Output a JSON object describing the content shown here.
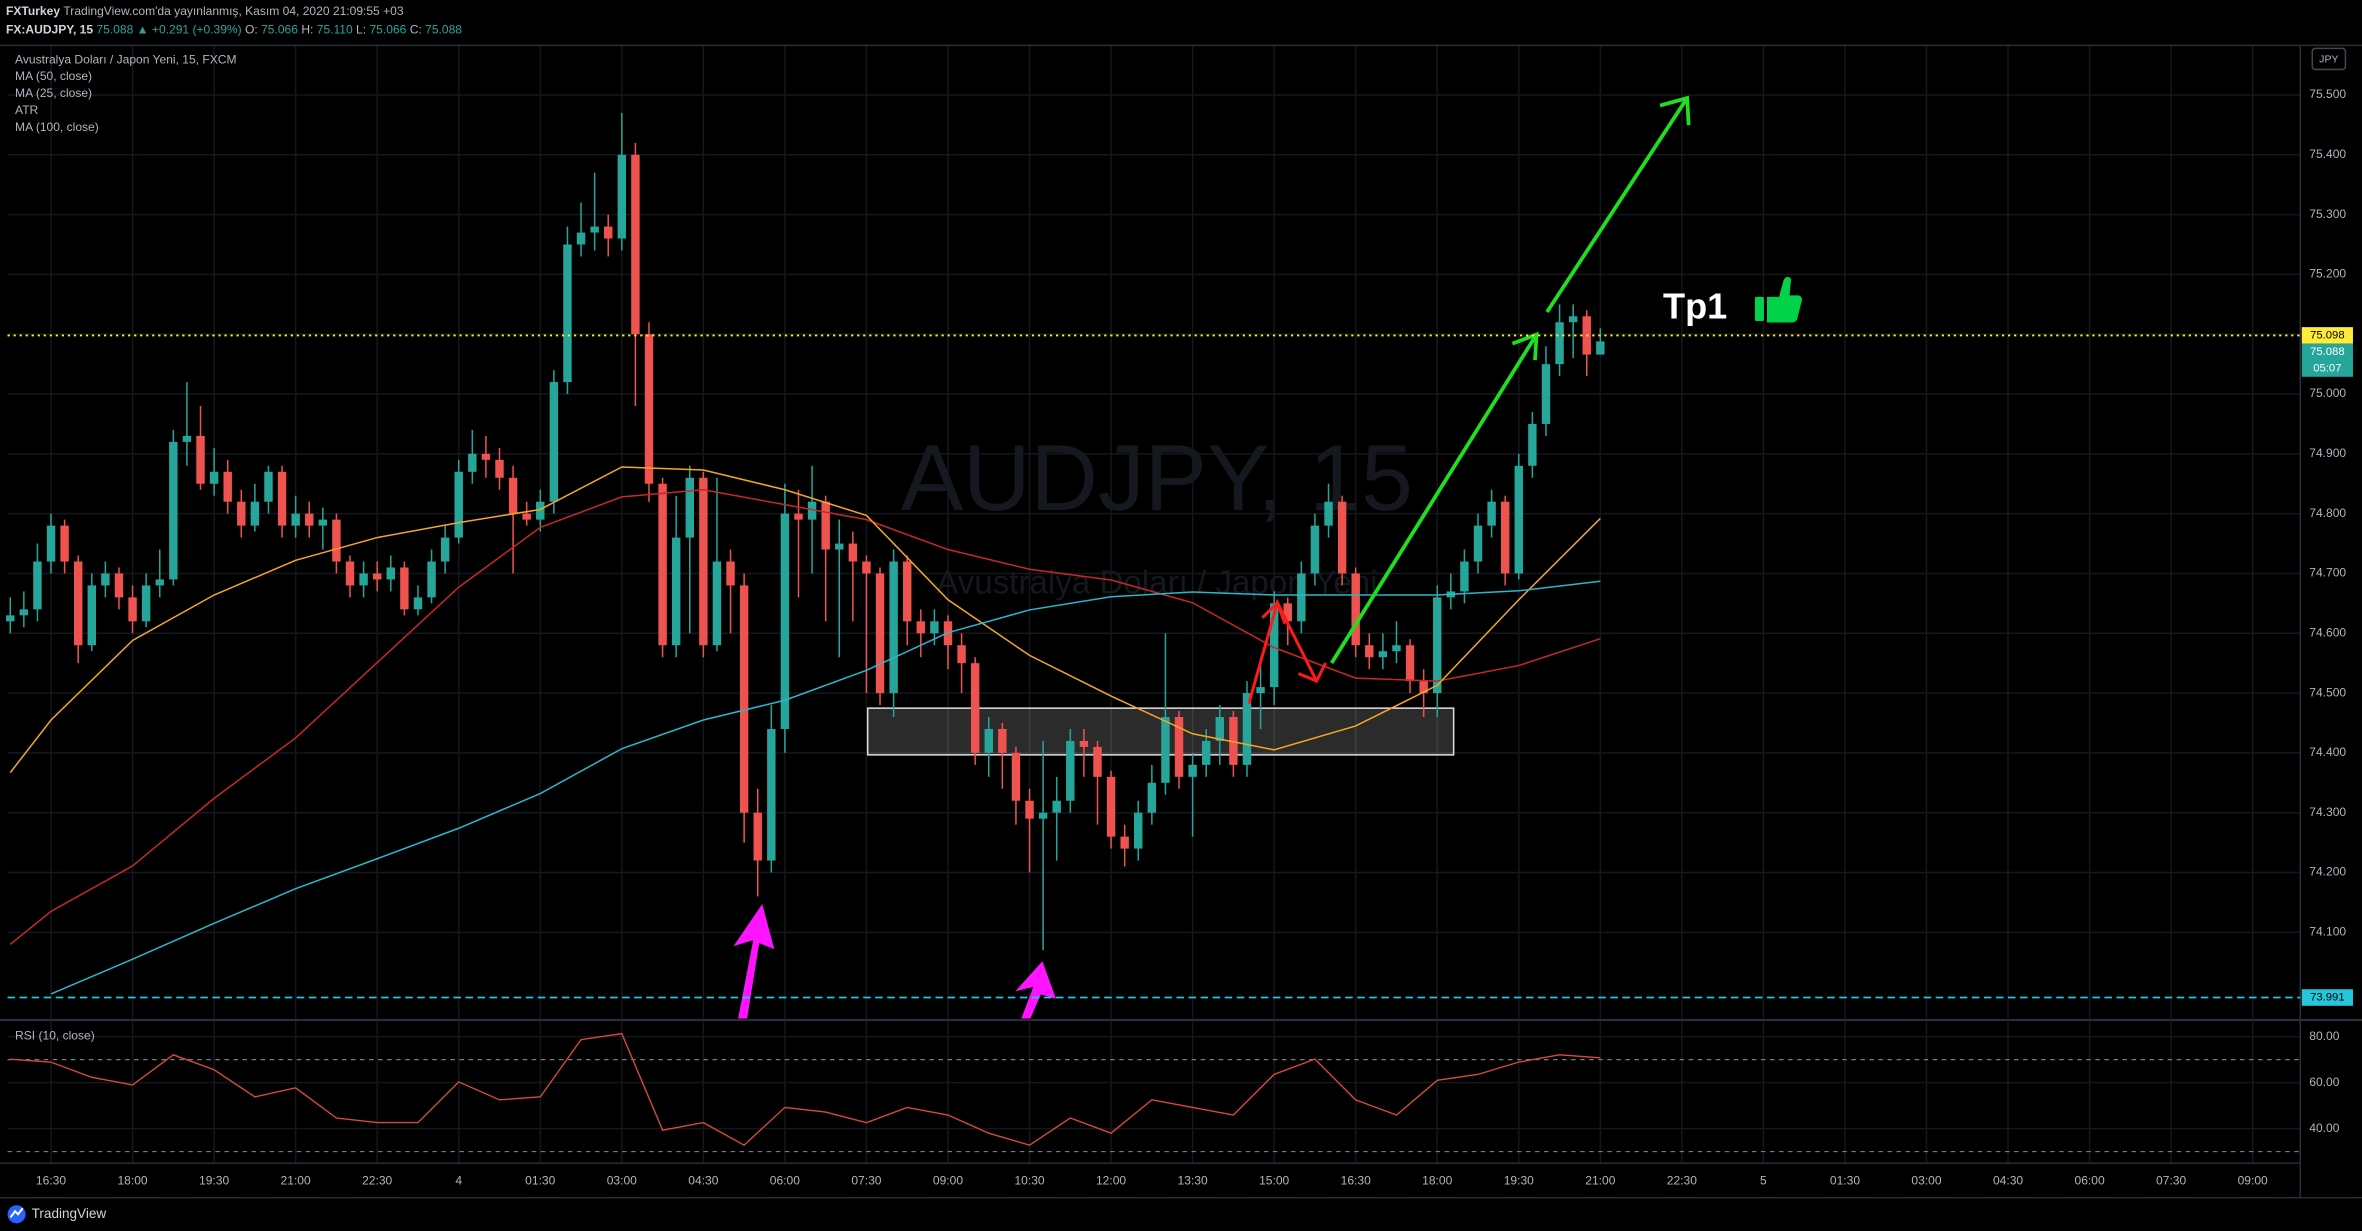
{
  "header": {
    "author": "FXTurkey",
    "published": "TradingView.com'da yayınlanmış, Kasım 04, 2020 21:09:55 +03",
    "quote": [
      "FX:AUDJPY, 15",
      "75.088",
      "▲ +0.291 (+0.39%)",
      "O:",
      "75.066",
      "H:",
      "75.110",
      "L:",
      "75.066",
      "C:",
      "75.088"
    ]
  },
  "footer": {
    "brand": "TradingView"
  },
  "chart_data": [
    {
      "type": "candlestick",
      "title": "Avustralya Doları / Japon Yeni, 15, FXCM",
      "watermark": "AUDJPY, 15",
      "watermark_sub": "Avustralya Doları / Japon Yeni",
      "currency": "JPY",
      "annotation": "Tp1",
      "up_color": "#26a69a",
      "down_color": "#ef5350",
      "xlim": [
        -3.2,
        165.5
      ],
      "ylim": [
        73.956,
        75.583
      ],
      "grid": true,
      "xticks": [
        {
          "value": 0,
          "label": "16:30"
        },
        {
          "value": 6,
          "label": "18:00"
        },
        {
          "value": 12,
          "label": "19:30"
        },
        {
          "value": 18,
          "label": "21:00"
        },
        {
          "value": 24,
          "label": "22:30"
        },
        {
          "value": 30,
          "label": "4"
        },
        {
          "value": 36,
          "label": "01:30"
        },
        {
          "value": 42,
          "label": "03:00"
        },
        {
          "value": 48,
          "label": "04:30"
        },
        {
          "value": 54,
          "label": "06:00"
        },
        {
          "value": 60,
          "label": "07:30"
        },
        {
          "value": 66,
          "label": "09:00"
        },
        {
          "value": 72,
          "label": "10:30"
        },
        {
          "value": 78,
          "label": "12:00"
        },
        {
          "value": 84,
          "label": "13:30"
        },
        {
          "value": 90,
          "label": "15:00"
        },
        {
          "value": 96,
          "label": "16:30"
        },
        {
          "value": 102,
          "label": "18:00"
        },
        {
          "value": 108,
          "label": "19:30"
        },
        {
          "value": 114,
          "label": "21:00"
        },
        {
          "value": 120,
          "label": "22:30"
        },
        {
          "value": 126,
          "label": "5"
        },
        {
          "value": 132,
          "label": "01:30"
        },
        {
          "value": 138,
          "label": "03:00"
        },
        {
          "value": 144,
          "label": "04:30"
        },
        {
          "value": 150,
          "label": "06:00"
        },
        {
          "value": 156,
          "label": "07:30"
        },
        {
          "value": 162,
          "label": "09:00"
        }
      ],
      "yticks": [
        {
          "value": 74.1,
          "label": "74.100"
        },
        {
          "value": 74.2,
          "label": "74.200"
        },
        {
          "value": 74.3,
          "label": "74.300"
        },
        {
          "value": 74.4,
          "label": "74.400"
        },
        {
          "value": 74.5,
          "label": "74.500"
        },
        {
          "value": 74.6,
          "label": "74.600"
        },
        {
          "value": 74.7,
          "label": "74.700"
        },
        {
          "value": 74.8,
          "label": "74.800"
        },
        {
          "value": 74.9,
          "label": "74.900"
        },
        {
          "value": 75.0,
          "label": "75.000"
        },
        {
          "value": 75.1,
          "label": "75.100"
        },
        {
          "value": 75.2,
          "label": "75.200"
        },
        {
          "value": 75.3,
          "label": "75.300"
        },
        {
          "value": 75.4,
          "label": "75.400"
        },
        {
          "value": 75.5,
          "label": "75.500"
        }
      ],
      "x": [
        -3,
        -2,
        -1,
        0,
        1,
        2,
        3,
        4,
        5,
        6,
        7,
        8,
        9,
        10,
        11,
        12,
        13,
        14,
        15,
        16,
        17,
        18,
        19,
        20,
        21,
        22,
        23,
        24,
        25,
        26,
        27,
        28,
        29,
        30,
        31,
        32,
        33,
        34,
        35,
        36,
        37,
        38,
        39,
        40,
        41,
        42,
        43,
        44,
        45,
        46,
        47,
        48,
        49,
        50,
        51,
        52,
        53,
        54,
        55,
        56,
        57,
        58,
        59,
        60,
        61,
        62,
        63,
        64,
        65,
        66,
        67,
        68,
        69,
        70,
        71,
        72,
        73,
        74,
        75,
        76,
        77,
        78,
        79,
        80,
        81,
        82,
        83,
        84,
        85,
        86,
        87,
        88,
        89,
        90,
        91,
        92,
        93,
        94,
        95,
        96,
        97,
        98,
        99,
        100,
        101,
        102,
        103,
        104,
        105,
        106,
        107,
        108,
        109,
        110,
        111,
        112,
        113,
        114
      ],
      "open": [
        74.62,
        74.63,
        74.64,
        74.72,
        74.78,
        74.72,
        74.58,
        74.68,
        74.7,
        74.66,
        74.62,
        74.68,
        74.69,
        74.92,
        74.93,
        74.85,
        74.87,
        74.82,
        74.78,
        74.82,
        74.87,
        74.78,
        74.8,
        74.78,
        74.79,
        74.72,
        74.68,
        74.7,
        74.69,
        74.71,
        74.64,
        74.66,
        74.72,
        74.76,
        74.87,
        74.9,
        74.89,
        74.86,
        74.8,
        74.79,
        74.82,
        75.02,
        75.25,
        75.27,
        75.28,
        75.26,
        75.4,
        75.1,
        74.85,
        74.58,
        74.76,
        74.86,
        74.58,
        74.72,
        74.68,
        74.3,
        74.22,
        74.44,
        74.8,
        74.79,
        74.82,
        74.74,
        74.75,
        74.72,
        74.7,
        74.5,
        74.72,
        74.62,
        74.6,
        74.62,
        74.58,
        74.55,
        74.4,
        74.44,
        74.4,
        74.32,
        74.29,
        74.3,
        74.32,
        74.42,
        74.41,
        74.36,
        74.26,
        74.24,
        74.3,
        74.35,
        74.46,
        74.36,
        74.38,
        74.42,
        74.46,
        74.38,
        74.5,
        74.51,
        74.65,
        74.62,
        74.7,
        74.78,
        74.82,
        74.7,
        74.58,
        74.56,
        74.57,
        74.58,
        74.52,
        74.5,
        74.66,
        74.67,
        74.72,
        74.78,
        74.82,
        74.7,
        74.88,
        74.95,
        75.05,
        75.12,
        75.13,
        75.066
      ],
      "high": [
        74.66,
        74.67,
        74.75,
        74.8,
        74.79,
        74.73,
        74.7,
        74.72,
        74.71,
        74.68,
        74.7,
        74.74,
        74.94,
        75.02,
        74.98,
        74.91,
        74.89,
        74.84,
        74.85,
        74.88,
        74.88,
        74.83,
        74.82,
        74.81,
        74.8,
        74.73,
        74.72,
        74.72,
        74.73,
        74.72,
        74.68,
        74.74,
        74.78,
        74.89,
        74.94,
        74.93,
        74.91,
        74.88,
        74.82,
        74.84,
        75.04,
        75.28,
        75.32,
        75.37,
        75.3,
        75.47,
        75.42,
        75.12,
        74.86,
        74.83,
        74.88,
        74.87,
        74.86,
        74.74,
        74.7,
        74.34,
        74.48,
        74.85,
        74.84,
        74.88,
        74.83,
        74.79,
        74.77,
        74.73,
        74.71,
        74.74,
        74.73,
        74.64,
        74.64,
        74.63,
        74.6,
        74.56,
        74.46,
        74.45,
        74.41,
        74.34,
        74.42,
        74.36,
        74.44,
        74.44,
        74.42,
        74.37,
        74.28,
        74.32,
        74.38,
        74.6,
        74.47,
        74.4,
        74.44,
        74.48,
        74.47,
        74.52,
        74.56,
        74.67,
        74.66,
        74.72,
        74.8,
        74.85,
        74.83,
        74.71,
        74.6,
        74.6,
        74.62,
        74.59,
        74.54,
        74.68,
        74.7,
        74.74,
        74.8,
        74.84,
        74.83,
        74.9,
        74.97,
        75.08,
        75.15,
        75.15,
        75.14,
        75.11
      ],
      "low": [
        74.6,
        74.61,
        74.62,
        74.7,
        74.7,
        74.55,
        74.57,
        74.66,
        74.64,
        74.6,
        74.61,
        74.66,
        74.68,
        74.88,
        74.84,
        74.83,
        74.8,
        74.76,
        74.77,
        74.8,
        74.76,
        74.76,
        74.76,
        74.74,
        74.7,
        74.66,
        74.66,
        74.67,
        74.67,
        74.63,
        74.63,
        74.65,
        74.7,
        74.75,
        74.85,
        74.86,
        74.84,
        74.7,
        74.78,
        74.77,
        74.8,
        75.0,
        75.23,
        75.24,
        75.23,
        75.24,
        74.98,
        74.82,
        74.56,
        74.56,
        74.6,
        74.56,
        74.57,
        74.6,
        74.25,
        74.16,
        74.2,
        74.4,
        74.66,
        74.7,
        74.62,
        74.56,
        74.62,
        74.5,
        74.48,
        74.46,
        74.58,
        74.56,
        74.58,
        74.54,
        74.5,
        74.38,
        74.36,
        74.34,
        74.28,
        74.2,
        74.07,
        74.22,
        74.3,
        74.36,
        74.28,
        74.24,
        74.21,
        74.22,
        74.28,
        74.33,
        74.34,
        74.26,
        74.36,
        74.38,
        74.36,
        74.36,
        74.44,
        74.48,
        74.58,
        74.6,
        74.68,
        74.76,
        74.68,
        74.56,
        74.54,
        74.54,
        74.55,
        74.5,
        74.46,
        74.46,
        74.64,
        74.65,
        74.7,
        74.76,
        74.68,
        74.69,
        74.86,
        74.93,
        75.03,
        75.06,
        75.03,
        75.066
      ],
      "close": [
        74.63,
        74.64,
        74.72,
        74.78,
        74.72,
        74.58,
        74.68,
        74.7,
        74.66,
        74.62,
        74.68,
        74.69,
        74.92,
        74.93,
        74.85,
        74.87,
        74.82,
        74.78,
        74.82,
        74.87,
        74.78,
        74.8,
        74.78,
        74.79,
        74.72,
        74.68,
        74.7,
        74.69,
        74.71,
        74.64,
        74.66,
        74.72,
        74.76,
        74.87,
        74.9,
        74.89,
        74.86,
        74.8,
        74.79,
        74.82,
        75.02,
        75.25,
        75.27,
        75.28,
        75.26,
        75.4,
        75.1,
        74.85,
        74.58,
        74.76,
        74.86,
        74.58,
        74.72,
        74.68,
        74.3,
        74.22,
        74.44,
        74.8,
        74.79,
        74.82,
        74.74,
        74.75,
        74.72,
        74.7,
        74.5,
        74.72,
        74.62,
        74.6,
        74.62,
        74.58,
        74.55,
        74.4,
        74.44,
        74.4,
        74.32,
        74.29,
        74.3,
        74.32,
        74.42,
        74.41,
        74.36,
        74.26,
        74.24,
        74.3,
        74.35,
        74.46,
        74.36,
        74.38,
        74.42,
        74.46,
        74.38,
        74.5,
        74.51,
        74.65,
        74.62,
        74.7,
        74.78,
        74.82,
        74.7,
        74.58,
        74.56,
        74.57,
        74.58,
        74.52,
        74.5,
        74.66,
        74.67,
        74.72,
        74.78,
        74.82,
        74.7,
        74.88,
        74.95,
        75.05,
        75.12,
        75.13,
        75.066,
        75.088
      ],
      "series": [
        {
          "name": "MA (50, close)",
          "color": "#c62828",
          "x": [
            -3,
            0,
            6,
            12,
            18,
            24,
            30,
            36,
            42,
            48,
            54,
            60,
            66,
            72,
            78,
            84,
            90,
            96,
            102,
            108,
            114
          ],
          "values": [
            74.08,
            74.135,
            74.211,
            74.324,
            74.425,
            74.551,
            74.677,
            74.777,
            74.828,
            74.84,
            74.815,
            74.79,
            74.74,
            74.707,
            74.689,
            74.651,
            74.576,
            74.525,
            74.52,
            74.546,
            74.591
          ]
        },
        {
          "name": "MA (25, close)",
          "color": "#f5a623",
          "x": [
            -3,
            0,
            6,
            12,
            18,
            24,
            30,
            36,
            42,
            48,
            54,
            60,
            66,
            72,
            78,
            84,
            90,
            96,
            102,
            108,
            114
          ],
          "values": [
            74.367,
            74.455,
            74.588,
            74.664,
            74.722,
            74.76,
            74.785,
            74.807,
            74.878,
            74.873,
            74.84,
            74.797,
            74.656,
            74.563,
            74.495,
            74.432,
            74.405,
            74.445,
            74.513,
            74.656,
            74.792
          ]
        },
        {
          "name": "ATR"
        },
        {
          "name": "MA (100, close)",
          "color": "#2ab7ca",
          "x": [
            0,
            6,
            12,
            18,
            24,
            30,
            36,
            42,
            48,
            54,
            60,
            66,
            72,
            78,
            84,
            90,
            96,
            102,
            108,
            114
          ],
          "values": [
            73.997,
            74.055,
            74.115,
            74.173,
            74.223,
            74.274,
            74.332,
            74.407,
            74.455,
            74.488,
            74.538,
            74.601,
            74.639,
            74.661,
            74.669,
            74.664,
            74.664,
            74.664,
            74.671,
            74.687
          ]
        }
      ],
      "hlines": [
        {
          "value": 75.098,
          "color": "#ffeb3b",
          "style": "dotted"
        },
        {
          "value": 73.991,
          "color": "#26c6da",
          "style": "dashed"
        }
      ],
      "last_price": 75.088,
      "countdown": "05:07"
    },
    {
      "type": "line",
      "title": "RSI (10, close)",
      "color": "#d84a3a",
      "xlim": [
        -3.2,
        165.5
      ],
      "ylim": [
        25,
        86.6
      ],
      "yticks": [
        {
          "value": 80,
          "label": "80.00"
        },
        {
          "value": 60,
          "label": "60.00"
        },
        {
          "value": 40,
          "label": "40.00"
        }
      ],
      "levels": [
        70,
        30
      ],
      "x": [
        -3,
        0,
        3,
        6,
        9,
        12,
        15,
        18,
        21,
        24,
        27,
        30,
        33,
        36,
        39,
        42,
        45,
        48,
        51,
        54,
        57,
        60,
        63,
        66,
        69,
        72,
        75,
        78,
        81,
        84,
        87,
        90,
        93,
        96,
        99,
        102,
        105,
        108,
        111,
        114
      ],
      "values": [
        70.2,
        68.9,
        62.3,
        59.0,
        72.1,
        65.6,
        53.8,
        57.7,
        44.6,
        42.6,
        42.6,
        60.3,
        52.5,
        53.8,
        78.7,
        81.3,
        39.3,
        42.6,
        32.8,
        49.2,
        47.2,
        42.6,
        49.2,
        45.9,
        38.0,
        32.8,
        44.6,
        38.0,
        52.5,
        49.2,
        45.9,
        63.6,
        70.2,
        52.5,
        45.9,
        61.0,
        63.6,
        68.9,
        72.1,
        70.8
      ]
    }
  ]
}
